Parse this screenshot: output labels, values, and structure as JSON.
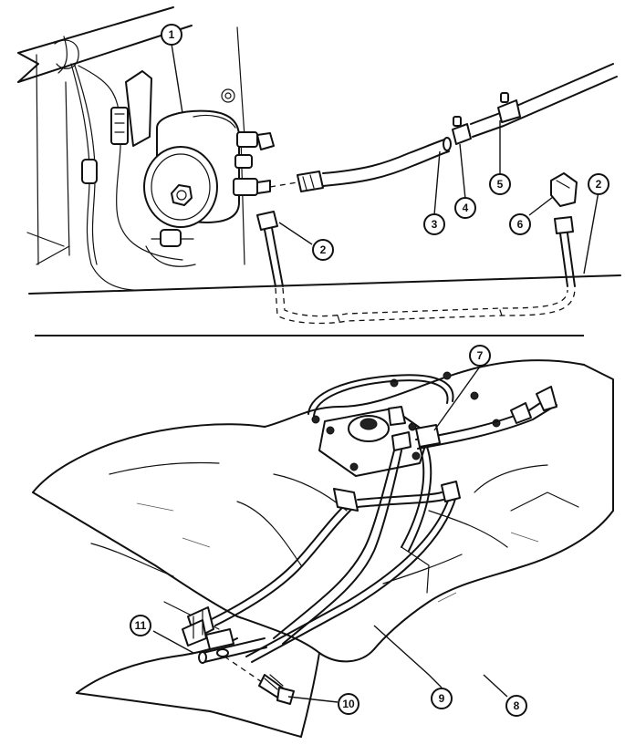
{
  "callouts": {
    "top": [
      "1",
      "2",
      "3",
      "4",
      "5",
      "6",
      "2"
    ],
    "bottom": [
      "7",
      "11",
      "8",
      "9",
      "10"
    ]
  }
}
